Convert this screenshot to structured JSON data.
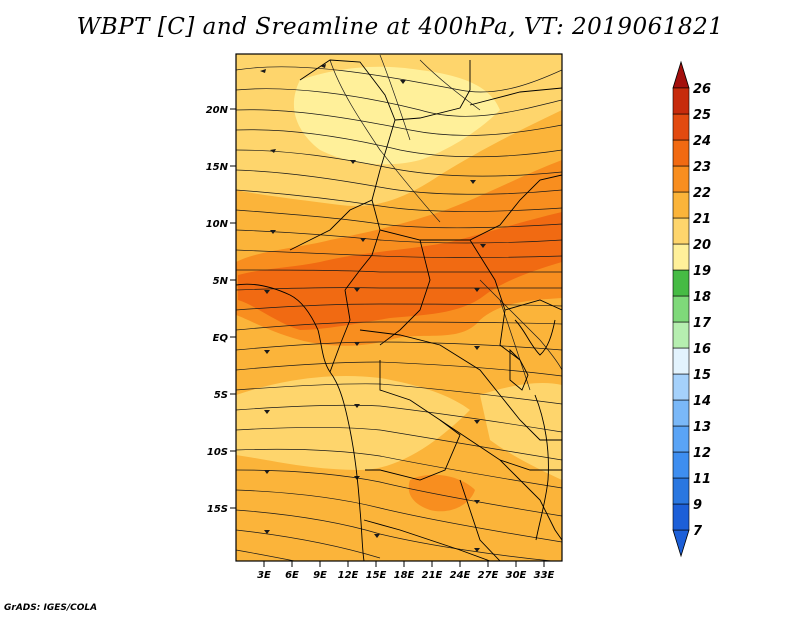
{
  "title": "WBPT [C] and Sreamline at 400hPa, VT: 2019061821",
  "credit": "GrADS: IGES/COLA",
  "map": {
    "lon_range": [
      0,
      34.5
    ],
    "lat_range": [
      -20,
      24.5
    ],
    "lon_ticks": [
      "3E",
      "6E",
      "9E",
      "12E",
      "15E",
      "18E",
      "21E",
      "24E",
      "27E",
      "30E",
      "33E"
    ],
    "lat_ticks": [
      "20N",
      "15N",
      "10N",
      "5N",
      "EQ",
      "5S",
      "10S",
      "15S"
    ],
    "background_color": "#fbb43a"
  },
  "colorbar": {
    "labels": [
      "7",
      "9",
      "11",
      "12",
      "13",
      "14",
      "15",
      "16",
      "17",
      "18",
      "19",
      "20",
      "21",
      "22",
      "23",
      "24",
      "25",
      "26"
    ],
    "colors": [
      "#1c5fd8",
      "#2a77e0",
      "#3e8ef0",
      "#5aa4f6",
      "#7ab8f8",
      "#a5d1fb",
      "#e3f3fd",
      "#b6eeb0",
      "#7fd97a",
      "#46bb44",
      "#fff09a",
      "#fed56c",
      "#fbb43a",
      "#f88e1f",
      "#f16a12",
      "#e24a10",
      "#c72b0c",
      "#a30f0c"
    ]
  }
}
